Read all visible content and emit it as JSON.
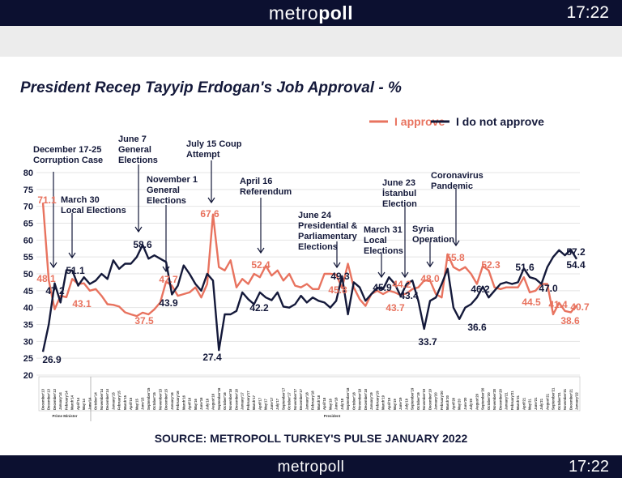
{
  "header": {
    "brand_light": "metro",
    "brand_bold": "poll",
    "time": "17:22"
  },
  "footer": {
    "brand": "metropoll",
    "time": "17:22"
  },
  "colors": {
    "approve": "#e8735f",
    "disapprove": "#14193a",
    "bar": "#0c1030"
  },
  "chart_data": {
    "type": "line",
    "title": "President Recep Tayyip Erdogan's Job Approval - %",
    "source": "SOURCE: METROPOLL TURKEY'S PULSE JANUARY 2022",
    "ylim": [
      20,
      80
    ],
    "yticks": [
      80,
      75,
      70,
      65,
      60,
      55,
      50,
      45,
      40,
      35,
      30,
      25,
      20
    ],
    "grid": true,
    "legend_position": "top-right",
    "groups": [
      {
        "label": "Prime Minister"
      },
      {
        "label": "President"
      }
    ],
    "categories": [
      "December'13",
      "December'13",
      "December'13",
      "January'14",
      "February'14",
      "March'14",
      "April'14",
      "May'14",
      "June'14",
      "October'14",
      "November'14",
      "December'14",
      "January'15",
      "February'15",
      "March'15",
      "April'15",
      "May'15",
      "June'15",
      "September'15",
      "October'15",
      "November'15",
      "December'15",
      "January'16",
      "February'16",
      "March'16",
      "April'16",
      "May'16",
      "June'16",
      "July'16",
      "August'16",
      "September'16",
      "October'16",
      "November'16",
      "December'16",
      "January'17",
      "February'17",
      "March'17",
      "April'17",
      "May'17",
      "June'17",
      "July'17",
      "September'17",
      "October'17",
      "November'17",
      "December'17",
      "January'18",
      "February'18",
      "March'18",
      "April'18",
      "May'18",
      "June'18",
      "July'18",
      "September'18",
      "October'18",
      "November'18",
      "December'18",
      "January'19",
      "February'19",
      "March'19",
      "April'19",
      "May'19",
      "June'19",
      "July'19",
      "September'19",
      "October'19",
      "November'19",
      "December'19",
      "January'20",
      "February'20",
      "March'20",
      "April'20",
      "May'20",
      "June'20",
      "July'20",
      "August'20",
      "September'20",
      "October'20",
      "November'20",
      "December'20",
      "January'21",
      "February'21",
      "March'21",
      "April'21",
      "May'21",
      "June'21",
      "July'21",
      "August'21",
      "September'21",
      "October'21",
      "November'21",
      "December'21",
      "January'22"
    ],
    "series": [
      {
        "name": "I approve",
        "values": [
          71.1,
          48.1,
          39.5,
          43.5,
          43.1,
          48.5,
          47.0,
          47.2,
          45.0,
          45.5,
          43.5,
          41.0,
          40.8,
          40.3,
          38.6,
          38.0,
          37.5,
          38.5,
          38.0,
          39.5,
          41.5,
          47.7,
          46.5,
          43.5,
          44.0,
          44.5,
          46.0,
          43.0,
          47.0,
          67.6,
          52.0,
          51.0,
          54.0,
          46.0,
          48.5,
          47.0,
          50.0,
          49.0,
          52.4,
          49.5,
          51.0,
          48.0,
          50.0,
          46.5,
          46.0,
          47.0,
          45.5,
          45.5,
          50.0,
          50.0,
          49.8,
          45.8,
          53.0,
          46.0,
          42.5,
          40.5,
          44.0,
          45.0,
          44.0,
          45.0,
          44.5,
          43.7,
          44.2,
          45.5,
          46.0,
          48.0,
          48.0,
          44.0,
          43.0,
          55.8,
          52.0,
          51.0,
          52.0,
          50.0,
          47.0,
          52.3,
          51.0,
          46.0,
          45.5,
          46.0,
          46.0,
          46.0,
          49.0,
          44.5,
          45.0,
          47.0,
          47.0,
          38.0,
          41.4,
          39.0,
          38.6,
          40.7
        ],
        "labeled": [
          0,
          1,
          4,
          16,
          21,
          29,
          38,
          51,
          61,
          62,
          65,
          69,
          75,
          83,
          88,
          90,
          91
        ]
      },
      {
        "name": "I do not approve",
        "values": [
          26.9,
          35.0,
          47.2,
          41.5,
          51.1,
          51.0,
          46.5,
          49.0,
          47.0,
          48.0,
          50.0,
          48.5,
          54.0,
          51.5,
          53.0,
          53.0,
          55.0,
          58.6,
          54.5,
          55.5,
          54.5,
          53.5,
          43.9,
          46.5,
          52.5,
          50.0,
          47.0,
          45.0,
          50.0,
          48.0,
          27.4,
          38.0,
          38.0,
          39.0,
          44.5,
          42.5,
          41.0,
          44.5,
          43.0,
          42.2,
          44.5,
          40.3,
          40.0,
          41.0,
          43.5,
          41.5,
          43.0,
          42.0,
          41.5,
          40.0,
          42.0,
          49.3,
          38.0,
          47.5,
          46.0,
          42.0,
          44.0,
          45.9,
          45.5,
          49.0,
          47.0,
          43.4,
          47.0,
          48.0,
          42.0,
          33.7,
          42.0,
          43.0,
          47.0,
          51.5,
          40.0,
          36.6,
          40.0,
          41.0,
          43.0,
          46.2,
          43.0,
          45.0,
          47.0,
          47.5,
          47.0,
          47.5,
          51.6,
          49.0,
          48.5,
          47.0,
          52.0,
          55.0,
          57.0,
          55.5,
          57.2,
          54.4
        ],
        "labeled": [
          0,
          2,
          4,
          17,
          22,
          30,
          39,
          51,
          57,
          61,
          65,
          71,
          75,
          82,
          85,
          90,
          91
        ]
      }
    ],
    "annotations": [
      {
        "lines": [
          "December 17-25",
          "Corruption Case"
        ]
      },
      {
        "lines": [
          "March 30",
          "Local Elections"
        ]
      },
      {
        "lines": [
          "June 7",
          "General",
          "Elections"
        ]
      },
      {
        "lines": [
          "November 1",
          "General",
          "Elections"
        ]
      },
      {
        "lines": [
          "July 15 Coup",
          "Attempt"
        ]
      },
      {
        "lines": [
          "April 16",
          "Referendum"
        ]
      },
      {
        "lines": [
          "June 24",
          "Presidential &",
          "Parliamentary",
          "Elections"
        ]
      },
      {
        "lines": [
          "March 31",
          "Local",
          "Elections"
        ]
      },
      {
        "lines": [
          "June 23",
          "İstanbul",
          "Election"
        ]
      },
      {
        "lines": [
          "Syria",
          "Operation"
        ]
      },
      {
        "lines": [
          "Coronavirus",
          "Pandemic"
        ]
      }
    ]
  }
}
